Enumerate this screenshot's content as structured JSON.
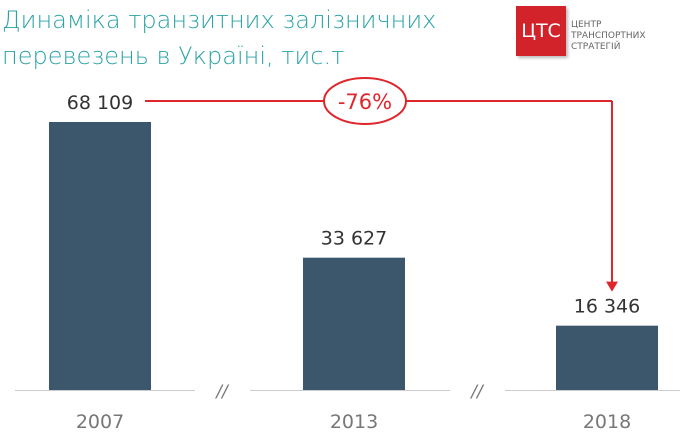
{
  "title_lines": [
    "Динаміка транзитних залізничних",
    "перевезень в Україні, тис.т"
  ],
  "logo": {
    "mark": "ЦТС",
    "lines": [
      "ЦЕНТР",
      "ТРАНСПОРТНИХ",
      "СТРАТЕГІЙ"
    ],
    "color": "#d3232a"
  },
  "chart_data": {
    "type": "bar",
    "title": "Динаміка транзитних залізничних перевезень в Україні, тис.т",
    "categories": [
      "2007",
      "2013",
      "2018"
    ],
    "values": [
      68109,
      33627,
      16346
    ],
    "data_labels": [
      "68 109",
      "33 627",
      "16 346"
    ],
    "axis_breaks": "//",
    "annotation": {
      "text": "-76%",
      "from": "2007",
      "to": "2018",
      "color": "#e0262d"
    },
    "bar_color": "#3c566b",
    "grid": false,
    "ylim": [
      0,
      68109
    ]
  }
}
